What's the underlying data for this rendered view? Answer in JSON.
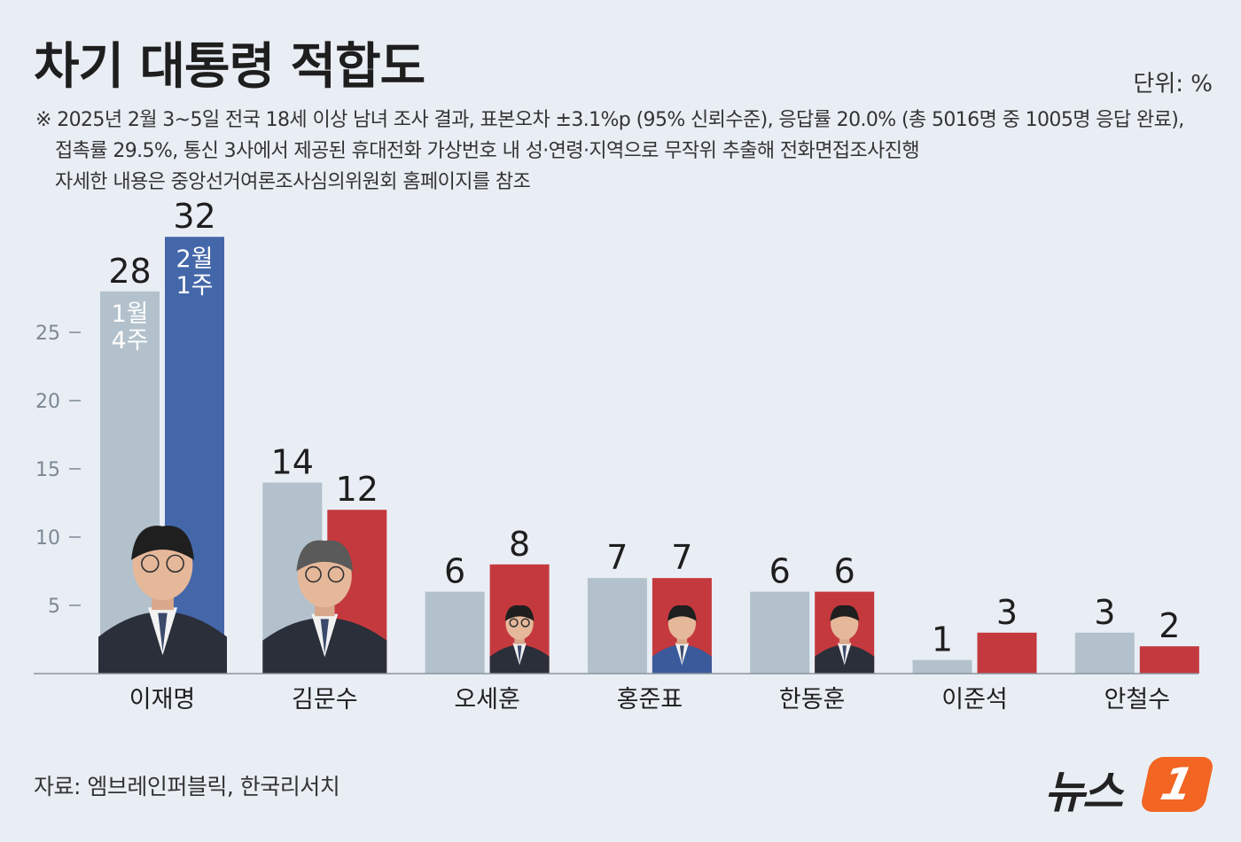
{
  "title": "차기 대통령 적합도",
  "unit_label": "단위: %",
  "note": {
    "line1": "※ 2025년 2월 3~5일 전국 18세 이상 남녀 조사 결과, 표본오차 ±3.1%p (95% 신뢰수준), 응답률  20.0% (총 5016명 중 1005명 응답 완료),",
    "line2": "접촉률 29.5%, 통신 3사에서 제공된 휴대전화 가상번호 내 성·연령·지역으로 무작위 추출해 전화면접조사진행",
    "line3": "자세한 내용은 중앙선거여론조사심의위원회 홈페이지를 참조"
  },
  "source": "자료: 엠브레인퍼블릭, 한국리서치",
  "logo": {
    "text": "뉴스",
    "badge": "1"
  },
  "colors": {
    "background": "#e9eef5",
    "prev_bar": "#b2c1cb",
    "curr_bar_first": "#4467aa",
    "curr_bar": "#c4393d",
    "accent_orange": "#f26522"
  },
  "chart_data": {
    "type": "bar",
    "categories": [
      "이재명",
      "김문수",
      "오세훈",
      "홍준표",
      "한동훈",
      "이준석",
      "안철수"
    ],
    "series": [
      {
        "name": "1월 4주",
        "values": [
          28,
          14,
          6,
          7,
          6,
          1,
          3
        ]
      },
      {
        "name": "2월 1주",
        "values": [
          32,
          12,
          8,
          7,
          6,
          3,
          2
        ]
      }
    ],
    "series_labels": [
      {
        "line1": "1월",
        "line2": "4주"
      },
      {
        "line1": "2월",
        "line2": "1주"
      }
    ],
    "yticks": [
      5,
      10,
      15,
      20,
      25
    ],
    "ylim": [
      0,
      35
    ],
    "grid": false,
    "legend": "inside-first-bars",
    "candidate_photos": [
      "이재명",
      "김문수",
      "오세훈",
      "홍준표",
      "한동훈"
    ]
  }
}
